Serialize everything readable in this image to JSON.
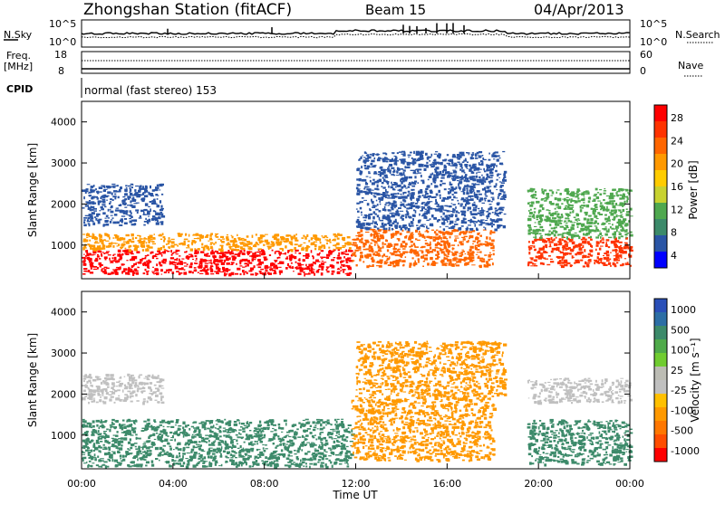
{
  "header": {
    "station": "Zhongshan Station (fitACF)",
    "beam": "Beam 15",
    "date": "04/Apr/2013"
  },
  "noise_panel": {
    "left_label": "N.Sky",
    "right_label": "N.Search",
    "left_ticks": [
      "10^5",
      "10^0"
    ],
    "right_ticks": [
      "10^5",
      "10^0"
    ]
  },
  "freq_panel": {
    "left_label_line1": "Freq.",
    "left_label_line2": "[MHz]",
    "left_ticks": [
      "18",
      "8"
    ],
    "right_label": "Nave",
    "right_ticks": [
      "60",
      "0"
    ]
  },
  "cpid_panel": {
    "label": "CPID",
    "text": "normal (fast stereo) 153"
  },
  "power_panel": {
    "ylabel": "Slant Range [km]",
    "yticks": [
      "4000",
      "3000",
      "2000",
      "1000"
    ],
    "colorbar_label": "Power [dB]",
    "colorbar_ticks": [
      "28",
      "24",
      "20",
      "16",
      "12",
      "8",
      "4"
    ],
    "colorbar_colors": [
      "#ff0000",
      "#ff3300",
      "#ff6600",
      "#ff9900",
      "#ffcc00",
      "#c8d230",
      "#4fa84f",
      "#3c8a6a",
      "#2a55a5",
      "#0000ff"
    ]
  },
  "velocity_panel": {
    "ylabel": "Slant Range [km]",
    "yticks": [
      "4000",
      "3000",
      "2000",
      "1000"
    ],
    "colorbar_label": "Velocity [m s⁻¹]",
    "colorbar_ticks": [
      "1000",
      "500",
      "100",
      "25",
      "-25",
      "-100",
      "-500",
      "-1000"
    ],
    "colorbar_colors": [
      "#2a4fb8",
      "#2c6ea5",
      "#3c8a6a",
      "#4faa4a",
      "#70cc30",
      "#bcbcb4",
      "#c0c0c0",
      "#ffc000",
      "#ff9900",
      "#ff7700",
      "#ff4d00",
      "#ff0000"
    ]
  },
  "xaxis": {
    "ticks": [
      "00:00",
      "04:00",
      "08:00",
      "12:00",
      "16:00",
      "20:00",
      "00:00"
    ],
    "label": "Time UT"
  },
  "chart_data": {
    "type": "heatmap",
    "title": "Zhongshan Station (fitACF)",
    "xlabel": "Time UT",
    "ylabel": "Slant Range [km]",
    "x_range_hours": [
      0,
      24
    ],
    "y_range_km": [
      180,
      4500
    ],
    "power_colorbar": {
      "label": "Power [dB]",
      "ticks": [
        28,
        24,
        20,
        16,
        12,
        8,
        4
      ]
    },
    "velocity_colorbar": {
      "label": "Velocity [m s-1]",
      "ticks": [
        1000,
        500,
        100,
        25,
        -25,
        -100,
        -500,
        -1000
      ]
    },
    "power_regions": [
      {
        "t": [
          0.0,
          11.8
        ],
        "range_km": [
          300,
          900
        ],
        "color": "#ff0000"
      },
      {
        "t": [
          0.0,
          11.8
        ],
        "range_km": [
          900,
          1300
        ],
        "color": "#ff9900"
      },
      {
        "t": [
          0.0,
          3.5
        ],
        "range_km": [
          1500,
          2500
        ],
        "color": "#2a55a5"
      },
      {
        "t": [
          11.8,
          18.0
        ],
        "range_km": [
          500,
          1400
        ],
        "color": "#ff6600"
      },
      {
        "t": [
          12.0,
          18.5
        ],
        "range_km": [
          1400,
          3300
        ],
        "color": "#2a55a5"
      },
      {
        "t": [
          19.5,
          24.0
        ],
        "range_km": [
          500,
          1200
        ],
        "color": "#ff3300"
      },
      {
        "t": [
          19.5,
          24.0
        ],
        "range_km": [
          1200,
          2400
        ],
        "color": "#4fa84f"
      }
    ],
    "velocity_regions": [
      {
        "t": [
          0.0,
          11.8
        ],
        "range_km": [
          250,
          1400
        ],
        "color": "#3c8a6a"
      },
      {
        "t": [
          0.0,
          3.5
        ],
        "range_km": [
          1800,
          2500
        ],
        "color": "#c0c0c0"
      },
      {
        "t": [
          11.8,
          18.0
        ],
        "range_km": [
          400,
          2000
        ],
        "color": "#ff9900"
      },
      {
        "t": [
          12.0,
          18.5
        ],
        "range_km": [
          2000,
          3300
        ],
        "color": "#ff9900"
      },
      {
        "t": [
          19.5,
          24.0
        ],
        "range_km": [
          300,
          1400
        ],
        "color": "#3c8a6a"
      },
      {
        "t": [
          19.5,
          24.0
        ],
        "range_km": [
          1800,
          2400
        ],
        "color": "#c0c0c0"
      }
    ]
  }
}
